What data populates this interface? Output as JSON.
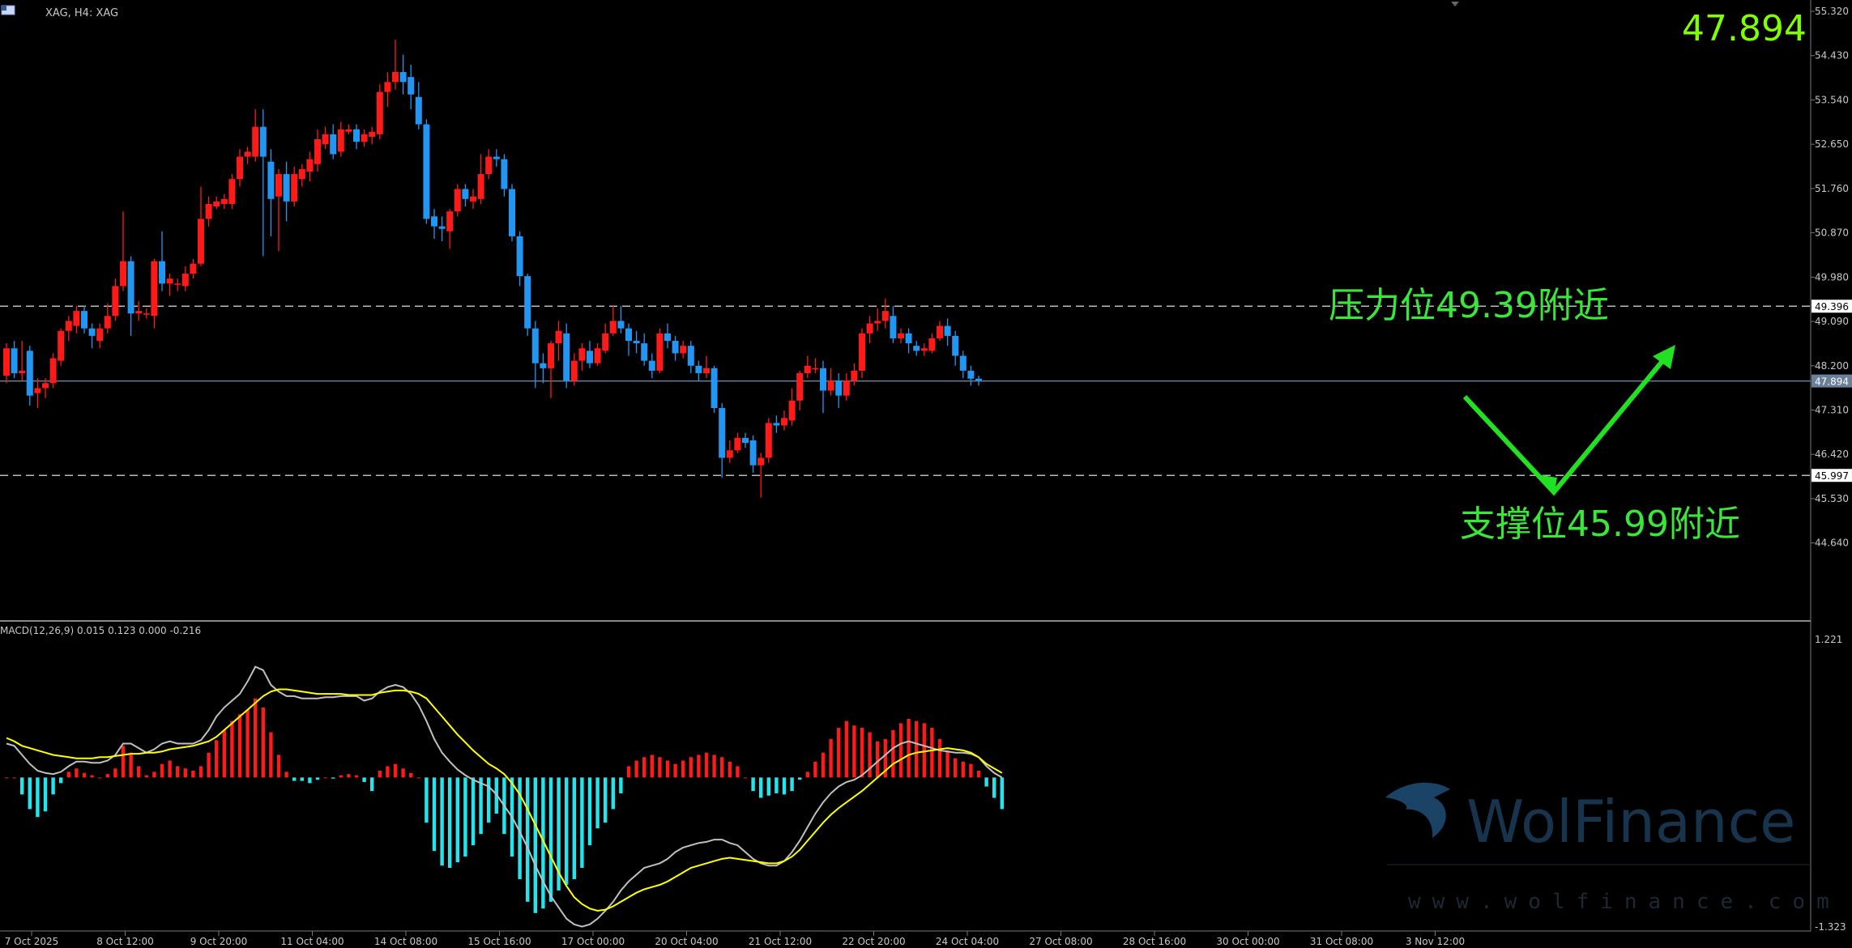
{
  "header": {
    "symbol_label": "XAG, H4:  XAG"
  },
  "price_display": "47.894",
  "macd_label": "MACD(12,26,9) 0.015 0.123 0.000 -0.216",
  "annotations": {
    "resistance": "压力位49.39附近",
    "support": "支撑位45.99附近"
  },
  "watermark": {
    "brand": "WolFinance",
    "url": "www.wolfinance.com"
  },
  "colors": {
    "bull": "#ff1a1a",
    "bear": "#2196f3",
    "macd_pos": "#ff1a1a",
    "macd_neg": "#22e5ee",
    "signal": "#ffff00",
    "macd_line": "#c0c0c0",
    "annotation": "#39e639"
  },
  "chart_data": [
    {
      "type": "candlestick",
      "title": "XAG, H4",
      "ylim": [
        44.0,
        55.32
      ],
      "y_ticks": [
        "55.320",
        "54.430",
        "53.540",
        "52.650",
        "51.760",
        "50.870",
        "49.980",
        "49.090",
        "48.200",
        "47.310",
        "46.420",
        "45.530",
        "44.640"
      ],
      "price_tags": [
        {
          "value": 49.396,
          "label": "49.396",
          "style": "dashed"
        },
        {
          "value": 47.894,
          "label": "47.894",
          "style": "solid"
        },
        {
          "value": 45.997,
          "label": "45.997",
          "style": "dashed"
        }
      ],
      "x_labels": [
        "7 Oct 2025",
        "8 Oct 12:00",
        "9 Oct 20:00",
        "11 Oct 04:00",
        "14 Oct 08:00",
        "15 Oct 16:00",
        "17 Oct 00:00",
        "20 Oct 04:00",
        "21 Oct 12:00",
        "22 Oct 20:00",
        "24 Oct 04:00",
        "27 Oct 08:00",
        "28 Oct 16:00",
        "30 Oct 00:00",
        "31 Oct 08:00",
        "3 Nov 12:00"
      ],
      "candles": [
        [
          48.0,
          48.55,
          48.65,
          47.85
        ],
        [
          48.55,
          48.05,
          48.7,
          47.95
        ],
        [
          48.05,
          48.1,
          48.7,
          47.9
        ],
        [
          48.5,
          47.6,
          48.6,
          47.4
        ],
        [
          47.65,
          47.75,
          47.95,
          47.35
        ],
        [
          47.75,
          47.85,
          47.95,
          47.55
        ],
        [
          47.85,
          48.35,
          48.45,
          47.75
        ],
        [
          48.3,
          48.9,
          48.95,
          48.2
        ],
        [
          48.9,
          49.1,
          49.2,
          48.7
        ],
        [
          49.0,
          49.3,
          49.4,
          48.85
        ],
        [
          49.3,
          48.95,
          49.4,
          48.85
        ],
        [
          48.95,
          48.8,
          49.05,
          48.55
        ],
        [
          48.7,
          48.95,
          49.05,
          48.55
        ],
        [
          48.95,
          49.2,
          49.45,
          48.85
        ],
        [
          49.2,
          49.8,
          49.95,
          49.1
        ],
        [
          49.8,
          50.3,
          51.3,
          49.7
        ],
        [
          50.3,
          49.25,
          50.4,
          48.8
        ],
        [
          49.25,
          49.3,
          49.5,
          49.1
        ],
        [
          49.25,
          49.25,
          49.35,
          49.15
        ],
        [
          49.2,
          50.3,
          50.35,
          48.95
        ],
        [
          50.3,
          49.85,
          50.9,
          49.7
        ],
        [
          49.85,
          49.95,
          50.05,
          49.6
        ],
        [
          49.85,
          49.85,
          49.95,
          49.7
        ],
        [
          49.8,
          50.05,
          50.2,
          49.7
        ],
        [
          50.05,
          50.25,
          50.35,
          49.95
        ],
        [
          50.25,
          51.15,
          51.8,
          50.2
        ],
        [
          51.15,
          51.45,
          51.6,
          51.0
        ],
        [
          51.4,
          51.5,
          51.6,
          51.35
        ],
        [
          51.45,
          51.55,
          51.65,
          51.35
        ],
        [
          51.45,
          51.95,
          52.05,
          51.35
        ],
        [
          51.95,
          52.4,
          52.55,
          51.8
        ],
        [
          52.4,
          52.5,
          52.6,
          52.25
        ],
        [
          52.4,
          53.0,
          53.35,
          52.3
        ],
        [
          53.0,
          52.4,
          53.35,
          50.4
        ],
        [
          52.3,
          51.55,
          52.55,
          50.8
        ],
        [
          51.6,
          52.05,
          52.15,
          50.5
        ],
        [
          52.05,
          51.5,
          52.3,
          51.1
        ],
        [
          51.5,
          52.05,
          52.2,
          51.4
        ],
        [
          51.95,
          52.15,
          52.25,
          51.8
        ],
        [
          52.1,
          52.35,
          52.5,
          51.9
        ],
        [
          52.25,
          52.75,
          52.95,
          52.1
        ],
        [
          52.65,
          52.85,
          53.0,
          52.55
        ],
        [
          52.85,
          52.45,
          53.05,
          52.35
        ],
        [
          52.5,
          52.95,
          53.1,
          52.4
        ],
        [
          52.9,
          52.95,
          53.05,
          52.85
        ],
        [
          52.95,
          52.7,
          53.05,
          52.55
        ],
        [
          52.7,
          52.85,
          52.95,
          52.6
        ],
        [
          52.8,
          52.9,
          53.0,
          52.65
        ],
        [
          52.85,
          53.7,
          53.85,
          52.75
        ],
        [
          53.7,
          53.9,
          54.1,
          53.4
        ],
        [
          53.9,
          54.1,
          54.75,
          53.75
        ],
        [
          54.1,
          53.9,
          54.45,
          53.65
        ],
        [
          54.0,
          53.65,
          54.25,
          53.35
        ],
        [
          53.6,
          53.05,
          53.9,
          52.95
        ],
        [
          53.05,
          51.15,
          53.15,
          51.05
        ],
        [
          51.2,
          51.0,
          51.35,
          50.75
        ],
        [
          51.0,
          50.95,
          51.2,
          50.7
        ],
        [
          50.9,
          51.3,
          51.35,
          50.55
        ],
        [
          51.3,
          51.75,
          51.85,
          51.2
        ],
        [
          51.75,
          51.55,
          51.85,
          51.4
        ],
        [
          51.5,
          51.6,
          51.75,
          51.35
        ],
        [
          51.55,
          52.05,
          52.45,
          51.45
        ],
        [
          52.05,
          52.4,
          52.55,
          51.95
        ],
        [
          52.4,
          52.35,
          52.55,
          52.2
        ],
        [
          52.35,
          51.75,
          52.45,
          51.6
        ],
        [
          51.75,
          50.8,
          51.85,
          50.7
        ],
        [
          50.8,
          50.0,
          50.9,
          49.8
        ],
        [
          50.0,
          48.95,
          50.05,
          48.8
        ],
        [
          48.95,
          48.25,
          49.1,
          47.75
        ],
        [
          48.25,
          48.15,
          48.45,
          47.85
        ],
        [
          48.15,
          48.65,
          48.7,
          47.55
        ],
        [
          48.65,
          48.9,
          49.1,
          48.3
        ],
        [
          48.85,
          47.9,
          49.05,
          47.75
        ],
        [
          47.9,
          48.3,
          48.45,
          47.8
        ],
        [
          48.3,
          48.55,
          48.65,
          48.1
        ],
        [
          48.5,
          48.25,
          48.7,
          48.15
        ],
        [
          48.25,
          48.55,
          48.65,
          48.2
        ],
        [
          48.5,
          48.85,
          49.05,
          48.45
        ],
        [
          48.85,
          49.1,
          49.4,
          48.8
        ],
        [
          49.1,
          48.95,
          49.4,
          48.85
        ],
        [
          48.95,
          48.7,
          49.05,
          48.4
        ],
        [
          48.7,
          48.65,
          48.9,
          48.45
        ],
        [
          48.65,
          48.3,
          48.85,
          48.2
        ],
        [
          48.3,
          48.1,
          48.45,
          47.95
        ],
        [
          48.1,
          48.85,
          48.95,
          48.05
        ],
        [
          48.85,
          48.7,
          49.05,
          48.55
        ],
        [
          48.7,
          48.45,
          48.8,
          48.3
        ],
        [
          48.45,
          48.6,
          48.7,
          48.35
        ],
        [
          48.6,
          48.2,
          48.7,
          48.05
        ],
        [
          48.2,
          48.05,
          48.3,
          47.9
        ],
        [
          48.05,
          48.15,
          48.4,
          47.95
        ],
        [
          48.15,
          47.35,
          48.2,
          47.25
        ],
        [
          47.35,
          46.35,
          47.45,
          45.95
        ],
        [
          46.35,
          46.5,
          46.7,
          46.25
        ],
        [
          46.5,
          46.75,
          46.85,
          46.45
        ],
        [
          46.75,
          46.65,
          46.85,
          46.55
        ],
        [
          46.7,
          46.2,
          46.8,
          46.05
        ],
        [
          46.2,
          46.35,
          46.45,
          45.55
        ],
        [
          46.35,
          47.05,
          47.15,
          46.25
        ],
        [
          47.05,
          47.0,
          47.2,
          46.85
        ],
        [
          47.0,
          47.15,
          47.3,
          46.9
        ],
        [
          47.1,
          47.5,
          47.75,
          47.0
        ],
        [
          47.5,
          48.05,
          48.1,
          47.3
        ],
        [
          48.05,
          48.2,
          48.4,
          47.95
        ],
        [
          48.15,
          48.15,
          48.35,
          48.05
        ],
        [
          48.15,
          47.7,
          48.3,
          47.25
        ],
        [
          47.7,
          47.9,
          48.15,
          47.6
        ],
        [
          47.9,
          47.6,
          48.05,
          47.35
        ],
        [
          47.6,
          47.9,
          48.05,
          47.5
        ],
        [
          47.9,
          48.1,
          48.25,
          47.8
        ],
        [
          48.1,
          48.85,
          48.95,
          47.95
        ],
        [
          48.85,
          49.05,
          49.2,
          48.65
        ],
        [
          49.05,
          49.1,
          49.35,
          48.9
        ],
        [
          49.1,
          49.3,
          49.55,
          48.95
        ],
        [
          49.2,
          48.75,
          49.4,
          48.65
        ],
        [
          48.75,
          48.85,
          48.95,
          48.65
        ],
        [
          48.85,
          48.65,
          48.95,
          48.45
        ],
        [
          48.6,
          48.5,
          48.7,
          48.4
        ],
        [
          48.5,
          48.55,
          48.65,
          48.4
        ],
        [
          48.5,
          48.75,
          48.85,
          48.45
        ],
        [
          48.75,
          49.0,
          49.1,
          48.7
        ],
        [
          49.0,
          48.8,
          49.15,
          48.6
        ],
        [
          48.8,
          48.4,
          48.9,
          48.2
        ],
        [
          48.4,
          48.1,
          48.5,
          47.95
        ],
        [
          48.1,
          47.94,
          48.2,
          47.8
        ],
        [
          47.94,
          47.9,
          48.0,
          47.8
        ]
      ],
      "macd_hist": [
        0.0,
        0.0,
        -0.15,
        -0.28,
        -0.35,
        -0.3,
        -0.15,
        -0.05,
        0.05,
        0.08,
        0.04,
        0.02,
        0.0,
        0.03,
        0.08,
        0.28,
        0.22,
        0.1,
        0.02,
        0.05,
        0.12,
        0.15,
        0.1,
        0.08,
        0.06,
        0.1,
        0.22,
        0.33,
        0.42,
        0.5,
        0.56,
        0.6,
        0.7,
        0.62,
        0.4,
        0.2,
        0.05,
        -0.03,
        -0.03,
        -0.05,
        -0.02,
        0.0,
        -0.01,
        0.02,
        0.03,
        0.02,
        -0.04,
        -0.12,
        0.06,
        0.1,
        0.12,
        0.08,
        0.04,
        0.0,
        -0.4,
        -0.65,
        -0.78,
        -0.8,
        -0.75,
        -0.7,
        -0.6,
        -0.5,
        -0.4,
        -0.32,
        -0.5,
        -0.7,
        -0.9,
        -1.1,
        -1.2,
        -1.16,
        -1.1,
        -1.0,
        -0.95,
        -0.9,
        -0.8,
        -0.6,
        -0.45,
        -0.4,
        -0.28,
        -0.14,
        0.1,
        0.15,
        0.18,
        0.2,
        0.18,
        0.15,
        0.12,
        0.15,
        0.18,
        0.2,
        0.22,
        0.2,
        0.18,
        0.14,
        0.1,
        0.0,
        -0.12,
        -0.18,
        -0.16,
        -0.14,
        -0.15,
        -0.12,
        -0.02,
        0.05,
        0.14,
        0.22,
        0.34,
        0.44,
        0.5,
        0.46,
        0.44,
        0.4,
        0.32,
        0.34,
        0.42,
        0.48,
        0.52,
        0.5,
        0.48,
        0.44,
        0.34,
        0.24,
        0.17,
        0.14,
        0.12,
        0.06,
        -0.08,
        -0.18,
        -0.28
      ],
      "macd_line": [
        0.3,
        0.28,
        0.2,
        0.12,
        0.06,
        0.04,
        0.03,
        0.05,
        0.1,
        0.14,
        0.14,
        0.13,
        0.13,
        0.15,
        0.2,
        0.3,
        0.3,
        0.26,
        0.22,
        0.25,
        0.3,
        0.32,
        0.3,
        0.3,
        0.3,
        0.33,
        0.42,
        0.54,
        0.62,
        0.68,
        0.74,
        0.85,
        0.98,
        0.95,
        0.82,
        0.76,
        0.72,
        0.72,
        0.7,
        0.7,
        0.7,
        0.71,
        0.71,
        0.72,
        0.72,
        0.72,
        0.68,
        0.7,
        0.76,
        0.8,
        0.82,
        0.8,
        0.74,
        0.64,
        0.5,
        0.34,
        0.22,
        0.14,
        0.07,
        0.02,
        -0.02,
        -0.05,
        -0.08,
        -0.15,
        -0.25,
        -0.35,
        -0.48,
        -0.62,
        -0.78,
        -0.92,
        -1.05,
        -1.15,
        -1.25,
        -1.3,
        -1.32,
        -1.3,
        -1.25,
        -1.18,
        -1.1,
        -1.0,
        -0.92,
        -0.86,
        -0.8,
        -0.78,
        -0.76,
        -0.72,
        -0.66,
        -0.62,
        -0.6,
        -0.58,
        -0.57,
        -0.55,
        -0.55,
        -0.58,
        -0.6,
        -0.66,
        -0.72,
        -0.76,
        -0.78,
        -0.78,
        -0.74,
        -0.66,
        -0.56,
        -0.44,
        -0.32,
        -0.22,
        -0.14,
        -0.08,
        -0.04,
        -0.02,
        0.02,
        0.08,
        0.14,
        0.2,
        0.26,
        0.3,
        0.32,
        0.3,
        0.28,
        0.26,
        0.24,
        0.23,
        0.22,
        0.22,
        0.21,
        0.18,
        0.1,
        0.04,
        0.0
      ],
      "signal_line": [
        0.35,
        0.32,
        0.28,
        0.26,
        0.24,
        0.22,
        0.2,
        0.19,
        0.18,
        0.17,
        0.17,
        0.17,
        0.18,
        0.18,
        0.19,
        0.2,
        0.21,
        0.21,
        0.22,
        0.22,
        0.23,
        0.25,
        0.26,
        0.27,
        0.28,
        0.3,
        0.32,
        0.36,
        0.42,
        0.48,
        0.54,
        0.6,
        0.66,
        0.72,
        0.76,
        0.78,
        0.78,
        0.77,
        0.76,
        0.75,
        0.74,
        0.74,
        0.74,
        0.74,
        0.73,
        0.73,
        0.73,
        0.73,
        0.75,
        0.76,
        0.77,
        0.77,
        0.76,
        0.74,
        0.7,
        0.62,
        0.54,
        0.46,
        0.38,
        0.31,
        0.24,
        0.18,
        0.12,
        0.08,
        0.03,
        -0.05,
        -0.15,
        -0.28,
        -0.42,
        -0.56,
        -0.7,
        -0.84,
        -0.96,
        -1.06,
        -1.12,
        -1.16,
        -1.18,
        -1.17,
        -1.14,
        -1.1,
        -1.06,
        -1.02,
        -0.99,
        -0.97,
        -0.95,
        -0.92,
        -0.88,
        -0.84,
        -0.8,
        -0.78,
        -0.76,
        -0.74,
        -0.72,
        -0.71,
        -0.72,
        -0.73,
        -0.74,
        -0.75,
        -0.76,
        -0.76,
        -0.74,
        -0.7,
        -0.64,
        -0.56,
        -0.48,
        -0.4,
        -0.33,
        -0.27,
        -0.22,
        -0.17,
        -0.12,
        -0.06,
        0.0,
        0.06,
        0.12,
        0.16,
        0.2,
        0.22,
        0.23,
        0.24,
        0.25,
        0.26,
        0.25,
        0.24,
        0.22,
        0.18,
        0.12,
        0.08,
        0.04
      ],
      "macd_ylim": [
        -1.323,
        1.221
      ],
      "macd_ticks": [
        "1.221",
        "-1.323"
      ]
    }
  ]
}
